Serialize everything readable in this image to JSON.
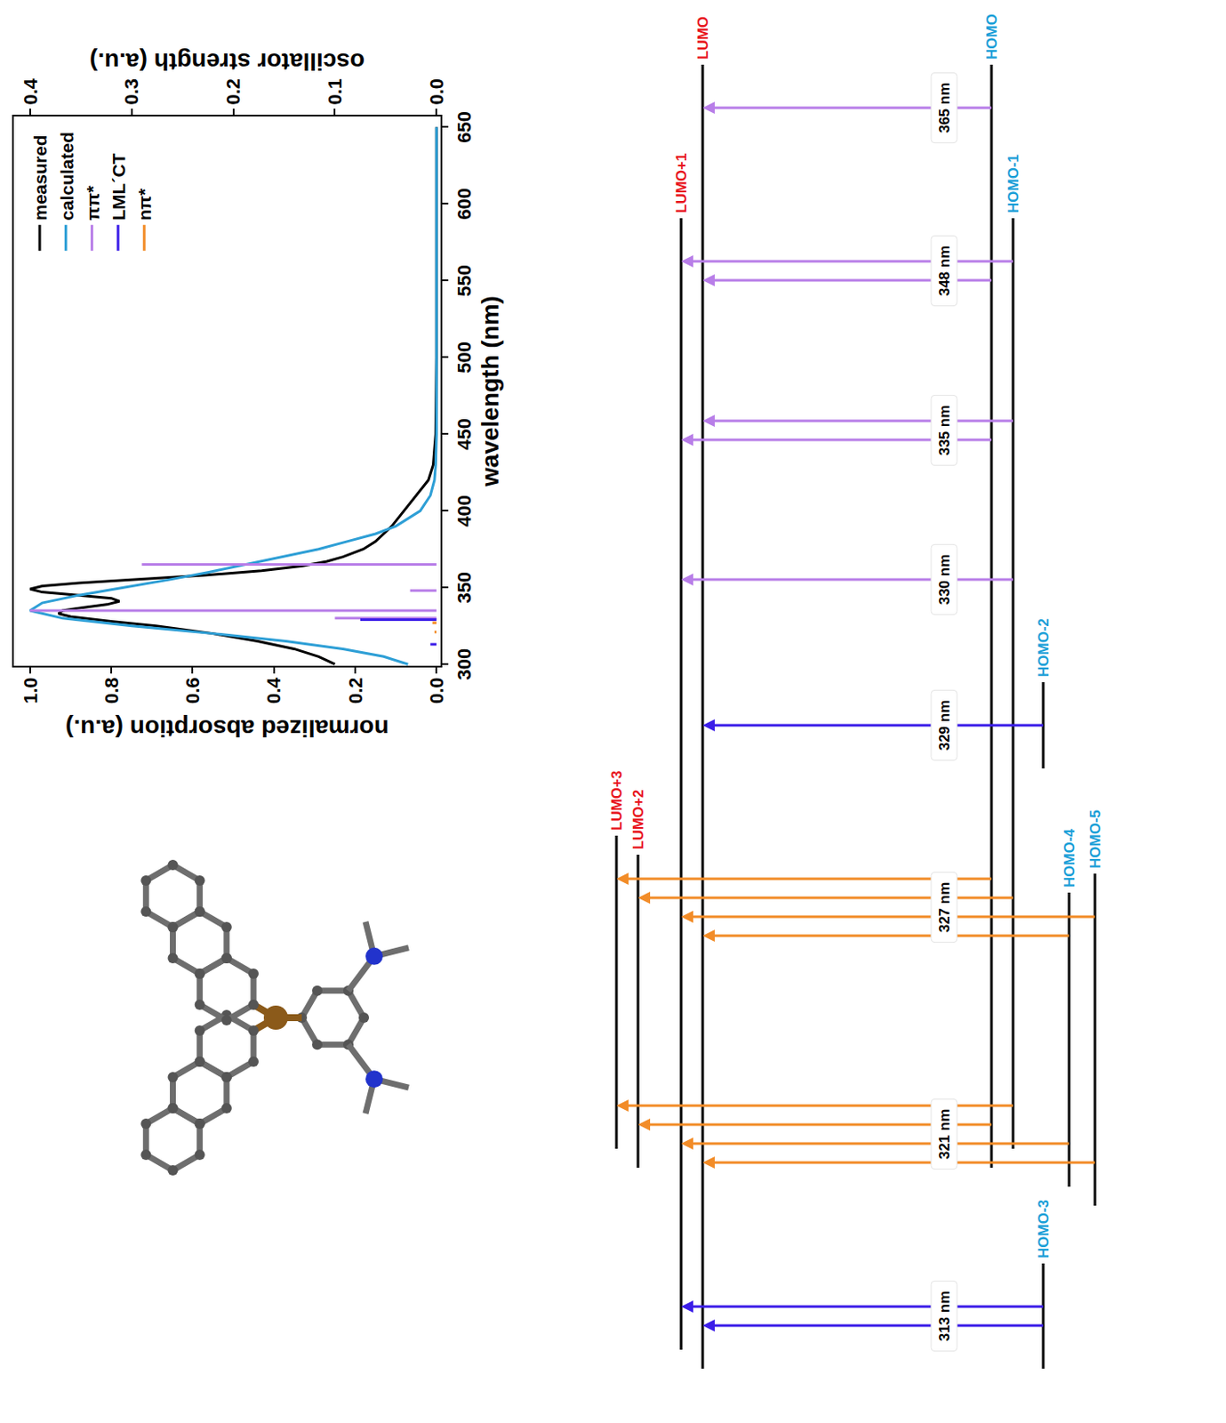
{
  "chart_data": {
    "type": "line",
    "xlabel": "wavelength (nm)",
    "ylabel": "normalized absorption (a.u.)",
    "y2label": "oscillator strength (a.u.)",
    "xlim": [
      299,
      657
    ],
    "xticks": [
      300,
      350,
      400,
      450,
      500,
      550,
      600,
      650
    ],
    "ylim": [
      -0.01,
      1.04
    ],
    "yticks": [
      {
        "value": 0,
        "label": "0.0"
      },
      0.2,
      0.4,
      0.6,
      0.8,
      {
        "value": 1,
        "label": "1.0"
      }
    ],
    "y2lim": [
      -0.004,
      0.416
    ],
    "y2ticks": [
      {
        "value": 0,
        "label": "0.0"
      },
      0.1,
      0.2,
      0.3,
      0.4
    ],
    "grid": false,
    "legend": "top right",
    "series": [
      {
        "name": "measured",
        "color": "#000000",
        "x": [
          300,
          305,
          310,
          315,
          320,
          325,
          328,
          331,
          333,
          335,
          337,
          339,
          341,
          343,
          345,
          347,
          349,
          351,
          353,
          355,
          358,
          361,
          364,
          367,
          370,
          375,
          380,
          390,
          400,
          410,
          420,
          430,
          450,
          500,
          550,
          600,
          650
        ],
        "values": [
          0.25,
          0.29,
          0.35,
          0.44,
          0.55,
          0.69,
          0.8,
          0.9,
          0.93,
          0.92,
          0.87,
          0.81,
          0.78,
          0.8,
          0.88,
          0.97,
          1.0,
          0.97,
          0.88,
          0.75,
          0.57,
          0.43,
          0.33,
          0.27,
          0.23,
          0.18,
          0.15,
          0.11,
          0.08,
          0.05,
          0.02,
          0.008,
          0.002,
          0,
          0,
          0,
          0
        ]
      },
      {
        "name": "calculated",
        "color": "#2e9fd6",
        "x": [
          300,
          305,
          310,
          315,
          320,
          325,
          330,
          335,
          340,
          345,
          350,
          355,
          360,
          365,
          370,
          375,
          380,
          385,
          390,
          400,
          410,
          420,
          430,
          450,
          500,
          550,
          600,
          650
        ],
        "values": [
          0.07,
          0.13,
          0.23,
          0.37,
          0.55,
          0.75,
          0.92,
          1.0,
          0.97,
          0.88,
          0.77,
          0.66,
          0.56,
          0.47,
          0.38,
          0.29,
          0.22,
          0.15,
          0.1,
          0.04,
          0.015,
          0.005,
          0.002,
          0,
          0,
          0,
          0,
          0
        ]
      },
      {
        "name": "ππ*",
        "type": "stick",
        "axis": "y2",
        "color": "#b87ee8",
        "x": [
          365,
          348,
          335,
          330
        ],
        "values": [
          0.29,
          0.026,
          0.4,
          0.1
        ]
      },
      {
        "name": "LML´CT",
        "type": "stick",
        "axis": "y2",
        "color": "#3b1de8",
        "x": [
          329,
          313
        ],
        "values": [
          0.075,
          0.006
        ]
      },
      {
        "name": "nπ*",
        "type": "stick",
        "axis": "y2",
        "color": "#f28c28",
        "x": [
          327,
          321
        ],
        "values": [
          0.004,
          0.002
        ]
      }
    ]
  },
  "diagram": {
    "levels": [
      {
        "label": "LUMO+3",
        "color": "#e8141c"
      },
      {
        "label": "LUMO+2",
        "color": "#e8141c"
      },
      {
        "label": "LUMO+1",
        "color": "#e8141c"
      },
      {
        "label": "LUMO",
        "color": "#e8141c"
      },
      {
        "label": "HOMO",
        "color": "#1ba0d8"
      },
      {
        "label": "HOMO-1",
        "color": "#1ba0d8"
      },
      {
        "label": "HOMO-2",
        "color": "#1ba0d8"
      },
      {
        "label": "HOMO-3",
        "color": "#1ba0d8"
      },
      {
        "label": "HOMO-4",
        "color": "#1ba0d8"
      },
      {
        "label": "HOMO-5",
        "color": "#1ba0d8"
      }
    ],
    "transitions": [
      {
        "label": "313 nm",
        "kind": "LML´CT",
        "arrows": [
          [
            "HOMO-3",
            "LUMO"
          ],
          [
            "HOMO-3",
            "LUMO+1"
          ]
        ]
      },
      {
        "label": "321 nm",
        "kind": "nπ*",
        "arrows": [
          [
            "HOMO-5",
            "LUMO"
          ],
          [
            "HOMO-4",
            "LUMO+1"
          ],
          [
            "HOMO",
            "LUMO+2"
          ],
          [
            "HOMO-1",
            "LUMO+3"
          ]
        ]
      },
      {
        "label": "327 nm",
        "kind": "nπ*",
        "arrows": [
          [
            "HOMO-4",
            "LUMO"
          ],
          [
            "HOMO-5",
            "LUMO+1"
          ],
          [
            "HOMO-1",
            "LUMO+2"
          ],
          [
            "HOMO",
            "LUMO+3"
          ]
        ]
      },
      {
        "label": "329 nm",
        "kind": "LML´CT",
        "arrows": [
          [
            "HOMO-2",
            "LUMO"
          ]
        ]
      },
      {
        "label": "330 nm",
        "kind": "ππ*",
        "arrows": [
          [
            "HOMO-1",
            "LUMO+1"
          ]
        ]
      },
      {
        "label": "335 nm",
        "kind": "ππ*",
        "arrows": [
          [
            "HOMO",
            "LUMO+1"
          ],
          [
            "HOMO-1",
            "LUMO"
          ]
        ]
      },
      {
        "label": "348 nm",
        "kind": "ππ*",
        "arrows": [
          [
            "HOMO",
            "LUMO"
          ],
          [
            "HOMO-1",
            "LUMO+1"
          ]
        ]
      },
      {
        "label": "365 nm",
        "kind": "ππ*",
        "arrows": [
          [
            "HOMO",
            "LUMO"
          ]
        ]
      }
    ]
  }
}
